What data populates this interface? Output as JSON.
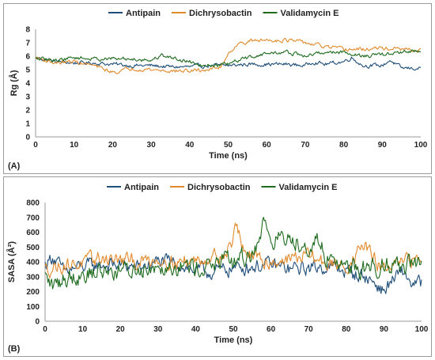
{
  "chart_data": [
    {
      "type": "line",
      "panel_label": "(A)",
      "xlabel": "Time (ns)",
      "ylabel": "Rg (Å)",
      "xlim": [
        0,
        100
      ],
      "ylim": [
        0,
        8
      ],
      "xticks": [
        0,
        10,
        20,
        30,
        40,
        50,
        60,
        70,
        80,
        90,
        100
      ],
      "yticks": [
        0,
        1,
        2,
        3,
        4,
        5,
        6,
        7,
        8
      ],
      "grid": false,
      "legend_position": "top",
      "series": [
        {
          "name": "Antipain",
          "color": "#1f4e79",
          "x": [
            0,
            5,
            10,
            15,
            20,
            25,
            30,
            35,
            40,
            45,
            50,
            55,
            60,
            65,
            70,
            72,
            75,
            80,
            82,
            85,
            90,
            92,
            95,
            100
          ],
          "y": [
            5.9,
            5.6,
            5.5,
            5.5,
            5.4,
            5.3,
            5.3,
            5.2,
            5.2,
            5.3,
            5.3,
            5.4,
            5.4,
            5.4,
            5.3,
            5.6,
            5.4,
            5.6,
            5.9,
            5.3,
            5.3,
            5.7,
            5.1,
            5.1
          ]
        },
        {
          "name": "Dichrysobactin",
          "color": "#e08a2c",
          "x": [
            0,
            5,
            10,
            15,
            20,
            22,
            25,
            30,
            35,
            40,
            45,
            48,
            50,
            52,
            55,
            60,
            65,
            70,
            75,
            80,
            85,
            90,
            95,
            100
          ],
          "y": [
            5.9,
            5.5,
            5.6,
            5.3,
            4.8,
            4.9,
            5.1,
            5.0,
            4.9,
            4.9,
            5.0,
            5.2,
            6.2,
            6.8,
            7.1,
            7.2,
            7.2,
            7.0,
            6.7,
            6.5,
            6.5,
            6.6,
            6.5,
            6.4
          ]
        },
        {
          "name": "Validamycin E",
          "color": "#1e6b1e",
          "x": [
            0,
            5,
            10,
            15,
            20,
            25,
            30,
            33,
            35,
            40,
            45,
            50,
            55,
            60,
            65,
            70,
            75,
            80,
            85,
            90,
            95,
            100
          ],
          "y": [
            5.8,
            5.7,
            5.9,
            5.8,
            5.8,
            5.8,
            5.7,
            6.1,
            5.9,
            5.6,
            5.3,
            5.4,
            5.9,
            6.2,
            6.3,
            6.0,
            6.3,
            6.3,
            6.0,
            6.1,
            6.3,
            6.4
          ]
        }
      ]
    },
    {
      "type": "line",
      "panel_label": "(B)",
      "xlabel": "Time (ns)",
      "ylabel": "SASA (Å²)",
      "xlim": [
        0,
        100
      ],
      "ylim": [
        0,
        800
      ],
      "xticks": [
        0,
        10,
        20,
        30,
        40,
        50,
        60,
        70,
        80,
        90,
        100
      ],
      "yticks": [
        0,
        100,
        200,
        300,
        400,
        500,
        600,
        700,
        800
      ],
      "grid": false,
      "legend_position": "top",
      "series": [
        {
          "name": "Antipain",
          "color": "#1f4e79",
          "x": [
            0,
            2,
            5,
            10,
            15,
            20,
            25,
            30,
            35,
            40,
            45,
            50,
            55,
            60,
            65,
            70,
            75,
            80,
            85,
            88,
            90,
            92,
            95,
            98,
            100
          ],
          "y": [
            380,
            440,
            330,
            370,
            380,
            380,
            360,
            400,
            390,
            340,
            330,
            360,
            370,
            380,
            350,
            360,
            370,
            340,
            300,
            250,
            200,
            270,
            330,
            240,
            260
          ]
        },
        {
          "name": "Dichrysobactin",
          "color": "#e08a2c",
          "x": [
            0,
            5,
            10,
            15,
            20,
            25,
            30,
            35,
            40,
            45,
            48,
            50,
            51,
            52,
            55,
            60,
            65,
            70,
            75,
            80,
            85,
            88,
            90,
            95,
            100
          ],
          "y": [
            350,
            380,
            390,
            430,
            410,
            400,
            420,
            400,
            410,
            440,
            450,
            560,
            680,
            520,
            420,
            400,
            420,
            450,
            380,
            370,
            520,
            390,
            350,
            390,
            430
          ]
        },
        {
          "name": "Validamycin E",
          "color": "#1e6b1e",
          "x": [
            0,
            2,
            5,
            10,
            15,
            20,
            25,
            30,
            35,
            40,
            45,
            50,
            55,
            57,
            58,
            60,
            65,
            70,
            72,
            75,
            80,
            85,
            90,
            95,
            100
          ],
          "y": [
            300,
            230,
            290,
            320,
            340,
            340,
            350,
            380,
            380,
            360,
            390,
            400,
            450,
            580,
            660,
            560,
            550,
            520,
            540,
            430,
            380,
            350,
            390,
            380,
            380
          ]
        }
      ]
    }
  ]
}
